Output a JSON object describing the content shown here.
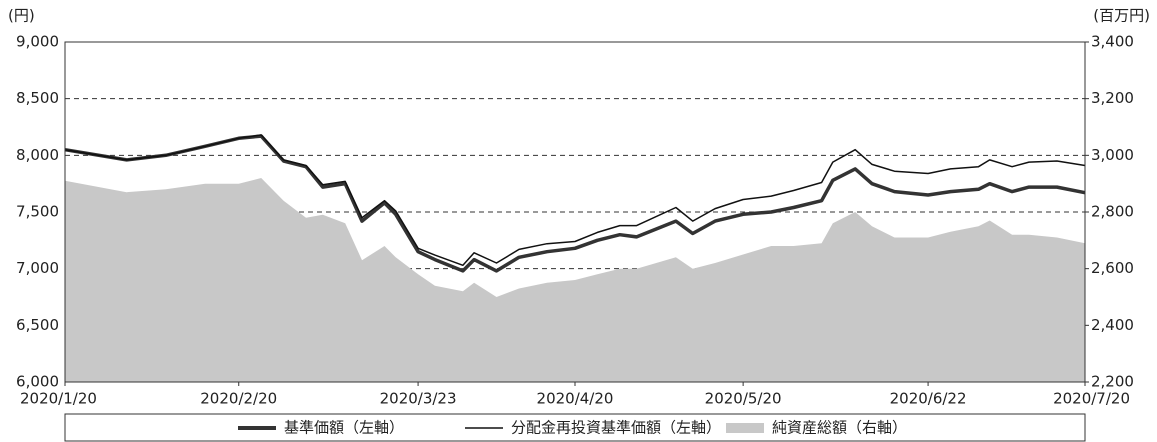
{
  "chart_data": {
    "type": "line",
    "y_unit": "(円)",
    "y2_unit": "(百万円)",
    "x": [
      "2020/1/20",
      "2020/1/31",
      "2020/2/7",
      "2020/2/14",
      "2020/2/20",
      "2020/2/24",
      "2020/2/28",
      "2020/3/3",
      "2020/3/6",
      "2020/3/10",
      "2020/3/13",
      "2020/3/17",
      "2020/3/19",
      "2020/3/23",
      "2020/3/26",
      "2020/3/31",
      "2020/4/2",
      "2020/4/6",
      "2020/4/10",
      "2020/4/15",
      "2020/4/20",
      "2020/4/24",
      "2020/4/28",
      "2020/5/1",
      "2020/5/8",
      "2020/5/11",
      "2020/5/15",
      "2020/5/20",
      "2020/5/25",
      "2020/5/29",
      "2020/6/3",
      "2020/6/5",
      "2020/6/9",
      "2020/6/12",
      "2020/6/16",
      "2020/6/22",
      "2020/6/26",
      "2020/7/1",
      "2020/7/3",
      "2020/7/7",
      "2020/7/10",
      "2020/7/15",
      "2020/7/20"
    ],
    "xlim": [
      "2020/1/20",
      "2020/7/20"
    ],
    "xticks": [
      "2020/1/20",
      "2020/2/20",
      "2020/3/23",
      "2020/4/20",
      "2020/5/20",
      "2020/6/22",
      "2020/7/20"
    ],
    "ylim": [
      6000,
      9000
    ],
    "yticks": [
      {
        "value": 6000,
        "label": "6,000"
      },
      {
        "value": 6500,
        "label": "6,500"
      },
      {
        "value": 7000,
        "label": "7,000"
      },
      {
        "value": 7500,
        "label": "7,500"
      },
      {
        "value": 8000,
        "label": "8,000"
      },
      {
        "value": 8500,
        "label": "8,500"
      },
      {
        "value": 9000,
        "label": "9,000"
      }
    ],
    "y2lim": [
      2200,
      3400
    ],
    "y2ticks": [
      {
        "value": 2200,
        "label": "2,200"
      },
      {
        "value": 2400,
        "label": "2,400"
      },
      {
        "value": 2600,
        "label": "2,600"
      },
      {
        "value": 2800,
        "label": "2,800"
      },
      {
        "value": 3000,
        "label": "3,000"
      },
      {
        "value": 3200,
        "label": "3,200"
      },
      {
        "value": 3400,
        "label": "3,400"
      }
    ],
    "grid": true,
    "series": [
      {
        "name": "基準価額（左軸）",
        "style": "thick",
        "color": "#333333",
        "values": [
          8050,
          7960,
          8000,
          8080,
          8150,
          8170,
          7950,
          7900,
          7720,
          7750,
          7420,
          7580,
          7480,
          7150,
          7080,
          6980,
          7080,
          6980,
          7100,
          7150,
          7180,
          7250,
          7300,
          7280,
          7420,
          7310,
          7420,
          7480,
          7500,
          7540,
          7600,
          7780,
          7880,
          7750,
          7680,
          7650,
          7680,
          7700,
          7750,
          7680,
          7720,
          7720,
          7670
        ]
      },
      {
        "name": "分配金再投資基準価額（左軸）",
        "style": "thin",
        "color": "#111111",
        "values": [
          8050,
          7960,
          8000,
          8080,
          8150,
          8180,
          7960,
          7910,
          7740,
          7770,
          7450,
          7600,
          7510,
          7180,
          7120,
          7030,
          7140,
          7050,
          7170,
          7220,
          7240,
          7320,
          7380,
          7380,
          7540,
          7420,
          7530,
          7610,
          7640,
          7690,
          7760,
          7940,
          8050,
          7920,
          7860,
          7840,
          7880,
          7900,
          7960,
          7900,
          7940,
          7950,
          7910
        ]
      },
      {
        "name": "純資産総額（右軸）",
        "style": "area",
        "color": "#c8c8c8",
        "axis": "y2",
        "values": [
          2910,
          2870,
          2880,
          2900,
          2900,
          2920,
          2840,
          2780,
          2790,
          2760,
          2630,
          2680,
          2640,
          2580,
          2540,
          2520,
          2550,
          2500,
          2530,
          2550,
          2560,
          2580,
          2600,
          2600,
          2640,
          2600,
          2620,
          2650,
          2680,
          2680,
          2690,
          2760,
          2800,
          2750,
          2710,
          2710,
          2730,
          2750,
          2770,
          2720,
          2720,
          2710,
          2690
        ]
      }
    ]
  }
}
